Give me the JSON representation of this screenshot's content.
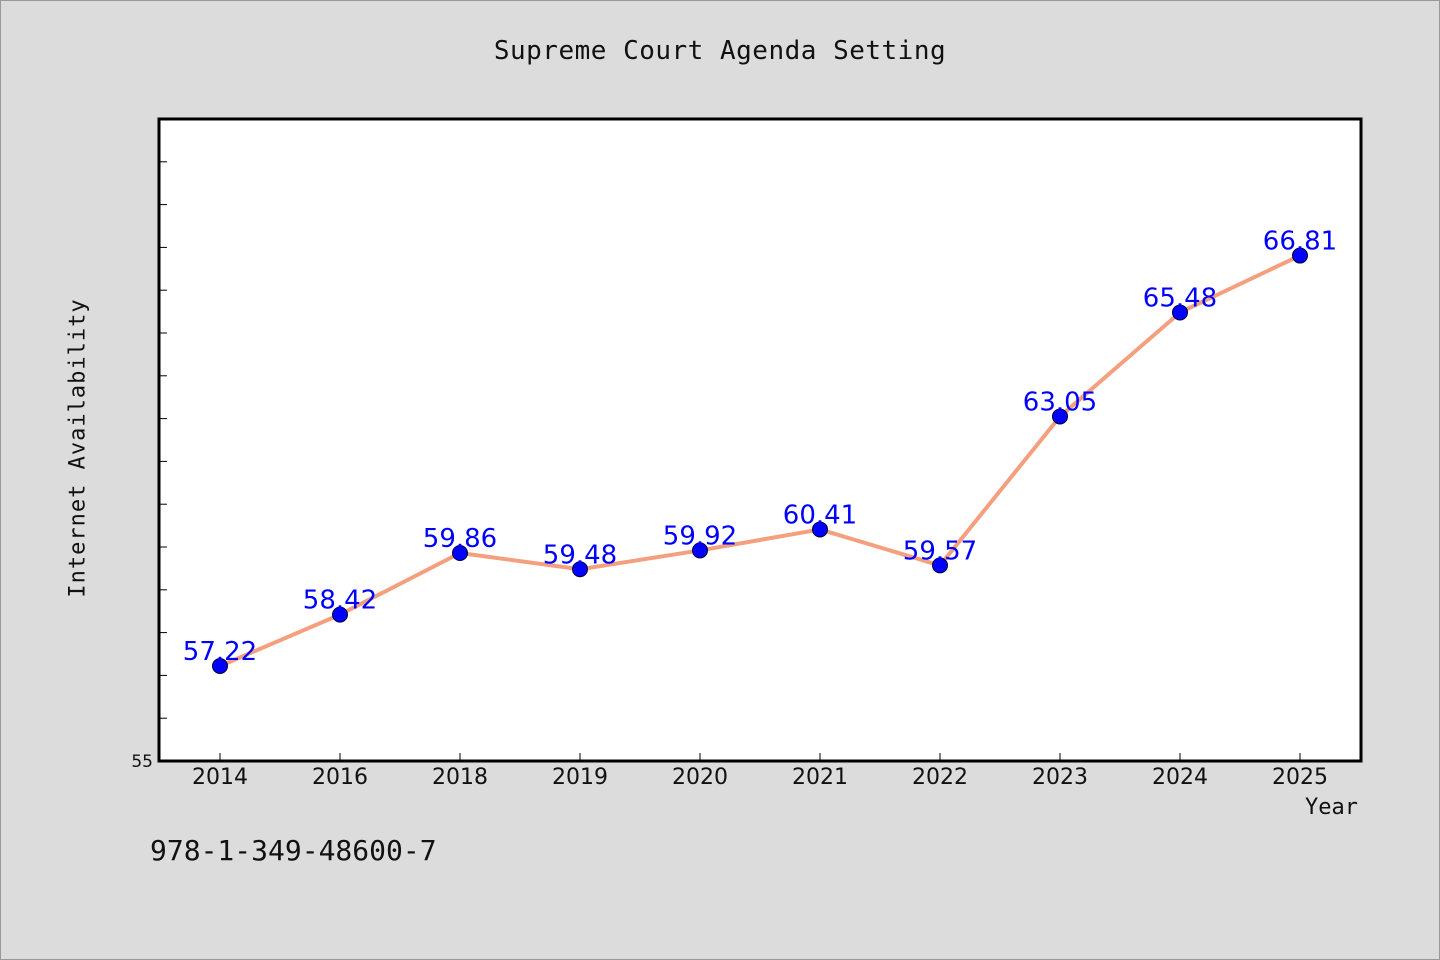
{
  "chart_data": {
    "type": "line",
    "title": "Supreme Court Agenda Setting",
    "xlabel": "Year",
    "ylabel": "Internet Availability",
    "categories": [
      "2014",
      "2016",
      "2018",
      "2019",
      "2020",
      "2021",
      "2022",
      "2023",
      "2024",
      "2025"
    ],
    "series": [
      {
        "values": [
          57.22,
          58.42,
          59.86,
          59.48,
          59.92,
          60.41,
          59.57,
          63.05,
          65.48,
          66.81
        ]
      }
    ],
    "data_labels": [
      "57.22",
      "58.42",
      "59.86",
      "59.48",
      "59.92",
      "60.41",
      "59.57",
      "63.05",
      "65.48",
      "66.81"
    ],
    "ylim": [
      55,
      70
    ],
    "y_tick_labels": [
      "55"
    ],
    "grid": false,
    "legend": "none",
    "colors": {
      "line": "#f4a07e",
      "marker": "#0000ff",
      "marker_edge": "#000033",
      "data_label": "#0000ff",
      "plot_bg": "#ffffff",
      "page_bg": "#dcdcdc"
    }
  },
  "footer": {
    "code": "978-1-349-48600-7"
  }
}
